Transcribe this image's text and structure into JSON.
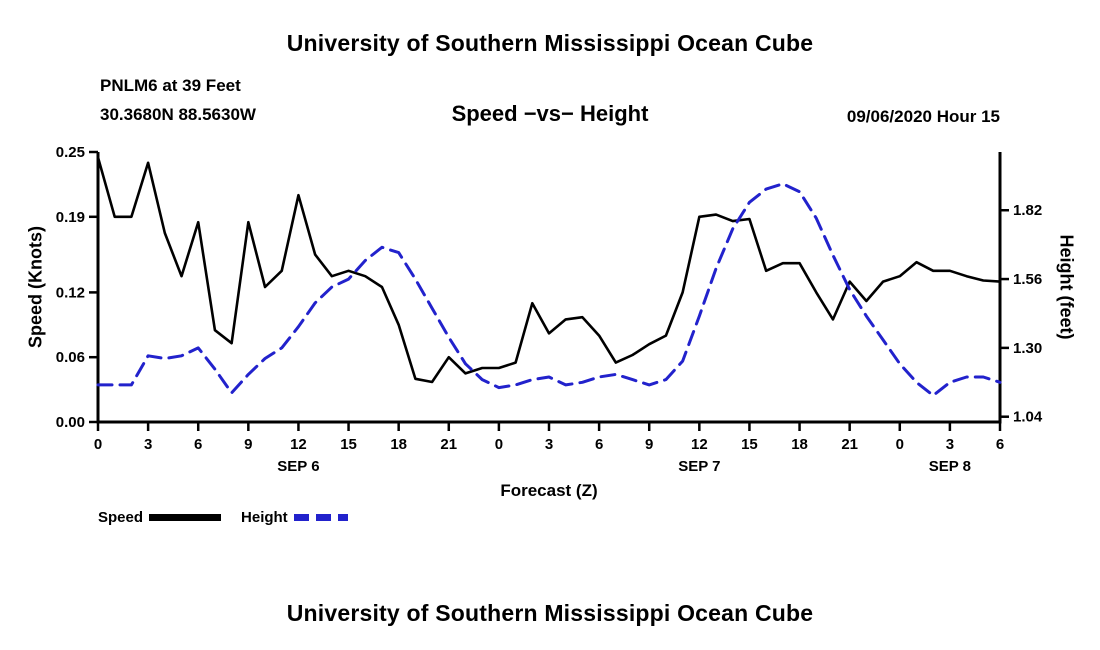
{
  "page": {
    "top_title": "University of Southern Mississippi Ocean Cube",
    "bottom_title": "University of Southern Mississippi Ocean Cube"
  },
  "header": {
    "station": "PNLM6 at 39 Feet",
    "coords": "30.3680N 88.5630W",
    "chart_title": "Speed −vs− Height",
    "datetime": "09/06/2020 Hour 15"
  },
  "legend": {
    "speed_label": "Speed",
    "height_label": "Height"
  },
  "colors": {
    "speed": "#000000",
    "height": "#2222cc"
  },
  "chart_data": {
    "type": "line",
    "title": "Speed −vs− Height",
    "xlabel": "Forecast (Z)",
    "ylabel_left": "Speed (Knots)",
    "ylabel_right": "Height (feet)",
    "grid": false,
    "legend_position": "bottom-left",
    "x_unit": "forecast hour from 00Z SEP 6 to 06Z SEP 8",
    "x_range": [
      0,
      54
    ],
    "x_tick_hours": [
      0,
      3,
      6,
      9,
      12,
      15,
      18,
      21,
      24,
      27,
      30,
      33,
      36,
      39,
      42,
      45,
      48,
      51,
      54
    ],
    "x_tick_labels": [
      "0",
      "3",
      "6",
      "9",
      "12",
      "15",
      "18",
      "21",
      "0",
      "3",
      "6",
      "9",
      "12",
      "15",
      "18",
      "21",
      "0",
      "3",
      "6"
    ],
    "day_labels": [
      {
        "hour": 12,
        "label": "SEP 6"
      },
      {
        "hour": 36,
        "label": "SEP 7"
      },
      {
        "hour": 51,
        "label": "SEP 8"
      }
    ],
    "left_axis": {
      "min": 0.0,
      "max": 0.25,
      "tick_values": [
        0.0,
        0.06,
        0.12,
        0.19,
        0.25
      ],
      "tick_labels": [
        "0.00",
        "0.06",
        "0.12",
        "0.19",
        "0.25"
      ]
    },
    "right_axis": {
      "min": 1.02,
      "max": 2.04,
      "tick_values": [
        1.04,
        1.3,
        1.56,
        1.82
      ],
      "tick_labels": [
        "1.04",
        "1.30",
        "1.56",
        "1.82"
      ]
    },
    "x_hours": [
      0,
      1,
      2,
      3,
      4,
      5,
      6,
      7,
      8,
      9,
      10,
      11,
      12,
      13,
      14,
      15,
      16,
      17,
      18,
      19,
      20,
      21,
      22,
      23,
      24,
      25,
      26,
      27,
      28,
      29,
      30,
      31,
      32,
      33,
      34,
      35,
      36,
      37,
      38,
      39,
      40,
      41,
      42,
      43,
      44,
      45,
      46,
      47,
      48,
      49,
      50,
      51,
      52,
      53,
      54
    ],
    "series": [
      {
        "name": "Speed",
        "axis": "left",
        "style": "solid",
        "color": "#000000",
        "values": [
          0.245,
          0.19,
          0.19,
          0.24,
          0.175,
          0.135,
          0.185,
          0.085,
          0.073,
          0.185,
          0.125,
          0.14,
          0.21,
          0.155,
          0.135,
          0.14,
          0.135,
          0.125,
          0.09,
          0.04,
          0.037,
          0.06,
          0.045,
          0.05,
          0.05,
          0.055,
          0.11,
          0.082,
          0.095,
          0.097,
          0.08,
          0.055,
          0.062,
          0.072,
          0.08,
          0.12,
          0.19,
          0.192,
          0.186,
          0.188,
          0.14,
          0.147,
          0.147,
          0.12,
          0.095,
          0.13,
          0.112,
          0.13,
          0.135,
          0.148,
          0.14,
          0.14,
          0.135,
          0.131,
          0.13
        ]
      },
      {
        "name": "Height",
        "axis": "right",
        "style": "dashed",
        "color": "#2222cc",
        "values": [
          1.16,
          1.16,
          1.16,
          1.27,
          1.26,
          1.27,
          1.3,
          1.22,
          1.13,
          1.2,
          1.26,
          1.3,
          1.38,
          1.47,
          1.53,
          1.56,
          1.63,
          1.68,
          1.66,
          1.56,
          1.45,
          1.34,
          1.24,
          1.18,
          1.15,
          1.16,
          1.18,
          1.19,
          1.16,
          1.17,
          1.19,
          1.2,
          1.18,
          1.16,
          1.18,
          1.25,
          1.42,
          1.6,
          1.75,
          1.85,
          1.9,
          1.92,
          1.89,
          1.79,
          1.65,
          1.52,
          1.42,
          1.33,
          1.24,
          1.17,
          1.12,
          1.17,
          1.19,
          1.19,
          1.17
        ]
      }
    ]
  }
}
